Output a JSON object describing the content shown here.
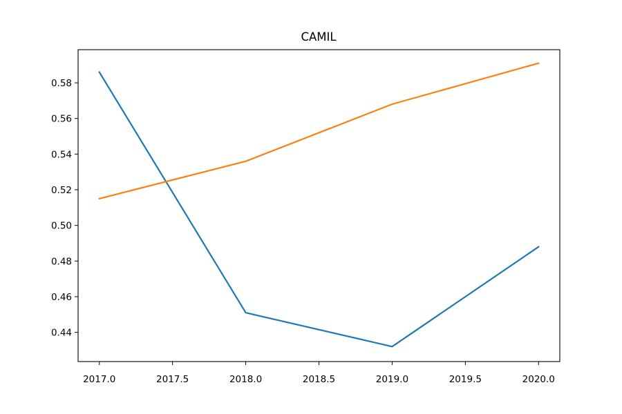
{
  "chart_data": {
    "type": "line",
    "title": "CAMIL",
    "xlabel": "",
    "ylabel": "",
    "x": [
      2017.0,
      2018.0,
      2019.0,
      2020.0
    ],
    "xlim": [
      2016.855,
      2020.145
    ],
    "ylim": [
      0.4236,
      0.5986
    ],
    "xticks": [
      "2017.0",
      "2017.5",
      "2018.0",
      "2018.5",
      "2019.0",
      "2019.5",
      "2020.0"
    ],
    "xtick_values": [
      2017.0,
      2017.5,
      2018.0,
      2018.5,
      2019.0,
      2019.5,
      2020.0
    ],
    "yticks": [
      "0.44",
      "0.46",
      "0.48",
      "0.50",
      "0.52",
      "0.54",
      "0.56",
      "0.58"
    ],
    "ytick_values": [
      0.44,
      0.46,
      0.48,
      0.5,
      0.52,
      0.54,
      0.56,
      0.58
    ],
    "grid": false,
    "series": [
      {
        "values": [
          0.586,
          0.451,
          0.432,
          0.488
        ],
        "color": "#1f77b4"
      },
      {
        "values": [
          0.515,
          0.536,
          0.568,
          0.591
        ],
        "color": "#ff7f0e"
      }
    ]
  }
}
